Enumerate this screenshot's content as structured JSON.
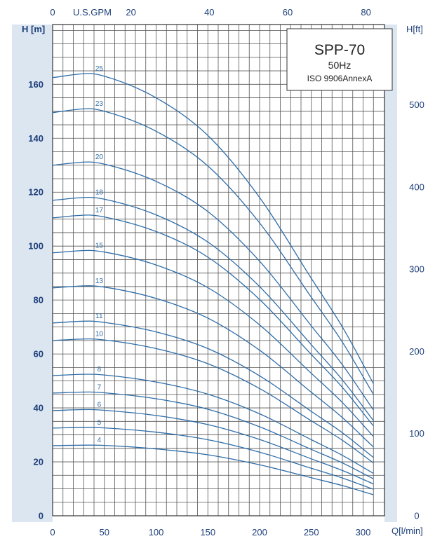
{
  "chart_data": {
    "type": "line",
    "title": "SPP-70",
    "subtitle": "50Hz",
    "standard": "ISO 9906AnnexA",
    "xlabel": "Q[l/min]",
    "ylabel": "H [m]",
    "x2label": "U.S.GPM",
    "y2label": "H[ft]",
    "xlim": [
      0,
      310
    ],
    "ylim": [
      0,
      180
    ],
    "x2lim": [
      0,
      81.9
    ],
    "y2lim": [
      0,
      590.6
    ],
    "x_ticks": [
      0,
      50,
      100,
      150,
      200,
      250,
      300
    ],
    "y_ticks": [
      0,
      20,
      40,
      60,
      80,
      100,
      120,
      140,
      160
    ],
    "x2_ticks": [
      0,
      20,
      40,
      60,
      80
    ],
    "y2_ticks": [
      0,
      100,
      200,
      300,
      400,
      500
    ],
    "grid": true,
    "colors": {
      "curve": "#2e6da8",
      "axis_band": "#dce6f0",
      "text": "#1d3f7a",
      "grid": "#555555"
    },
    "x": [
      0,
      35,
      50,
      100,
      150,
      200,
      250,
      280,
      310
    ],
    "series": [
      {
        "name": "25",
        "values": [
          162.5,
          164.0,
          163.0,
          155.0,
          141.0,
          118.0,
          88.0,
          70.0,
          49.0
        ]
      },
      {
        "name": "23",
        "values": [
          149.5,
          151.0,
          150.0,
          142.6,
          129.7,
          108.6,
          81.0,
          64.4,
          45.0
        ]
      },
      {
        "name": "20",
        "values": [
          130.0,
          131.2,
          130.4,
          124.0,
          112.8,
          94.4,
          70.4,
          56.0,
          39.2
        ]
      },
      {
        "name": "18",
        "values": [
          117.0,
          118.1,
          117.4,
          111.6,
          101.5,
          85.0,
          63.4,
          50.4,
          35.3
        ]
      },
      {
        "name": "17",
        "values": [
          110.5,
          111.5,
          110.8,
          105.4,
          95.9,
          80.2,
          59.8,
          47.6,
          33.3
        ]
      },
      {
        "name": "15",
        "values": [
          97.5,
          98.4,
          97.8,
          93.0,
          84.6,
          70.8,
          52.8,
          42.0,
          29.4
        ]
      },
      {
        "name": "13",
        "values": [
          84.5,
          85.3,
          84.8,
          80.6,
          73.3,
          61.4,
          45.8,
          36.4,
          25.5
        ]
      },
      {
        "name": "11",
        "values": [
          71.5,
          72.2,
          71.7,
          68.2,
          62.0,
          51.9,
          38.7,
          30.8,
          21.6
        ]
      },
      {
        "name": "10",
        "values": [
          65.0,
          65.6,
          65.2,
          62.0,
          56.4,
          47.2,
          35.2,
          28.0,
          19.6
        ]
      },
      {
        "name": "8",
        "values": [
          52.0,
          52.5,
          52.2,
          49.6,
          45.1,
          37.8,
          28.2,
          22.4,
          15.7
        ]
      },
      {
        "name": "7",
        "values": [
          45.5,
          45.9,
          45.6,
          43.4,
          39.5,
          33.0,
          24.6,
          19.6,
          13.7
        ]
      },
      {
        "name": "6",
        "values": [
          39.0,
          39.4,
          39.1,
          37.2,
          33.8,
          28.3,
          21.1,
          16.8,
          11.8
        ]
      },
      {
        "name": "5",
        "values": [
          32.5,
          32.8,
          32.6,
          31.0,
          28.2,
          23.6,
          17.6,
          14.0,
          9.8
        ]
      },
      {
        "name": "4",
        "values": [
          26.0,
          26.2,
          26.1,
          24.8,
          22.6,
          18.9,
          14.1,
          11.2,
          7.8
        ]
      }
    ]
  }
}
